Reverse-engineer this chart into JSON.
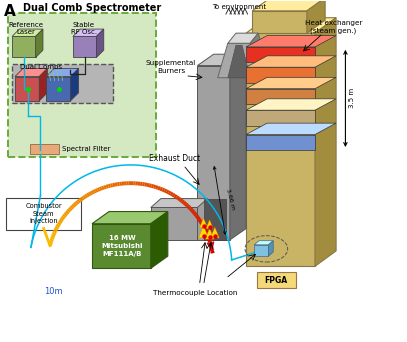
{
  "bg_color": "#ffffff",
  "green_box_color": "#d4e8c2",
  "green_box_edge": "#6aaa3a",
  "colors": {
    "red_shelf": "#e83020",
    "orange_shelf1": "#e87030",
    "orange_shelf2": "#d08040",
    "tan_shelf": "#c0a878",
    "blue_shelf": "#7090d0",
    "tan_wall": "#c8b464",
    "gray_duct_light": "#a0a0a0",
    "gray_duct_dark": "#707070",
    "green_turbine": "#5a8a30",
    "cyan_line": "#00b8e8",
    "yellow_fire": "#ffdd00",
    "red_cube": "#c85050",
    "blue_cube": "#4868b0",
    "green_cube": "#90b060",
    "purple_cube": "#9880b8",
    "salmon_filter": "#e8a878",
    "chimney_gray": "#a8a8a8",
    "chimney_dark": "#787878"
  },
  "labels": {
    "panel": "A",
    "title": "Dual Comb Spectrometer",
    "ref_laser": "Reference\nLaser",
    "stable_rf": "Stable\nRF Osc.",
    "dual_combs": "Dual Combs",
    "spectral_filter": "Spectral Filter",
    "combustor": "Combustor\nSteam\nInjection",
    "exhaust_duct": "Exhaust Duct",
    "turbine": "16 MW\nMitsubishi\nMF111A/B",
    "supplemental": "Supplemental\nBurners",
    "thermocouple": "Thermocouple Location",
    "to_env": "To environment",
    "heat_exchanger": "Heat exchanger\n(steam gen.)",
    "fpga": "FPGA",
    "dist_35": "3.5 m",
    "dist_366": "3.66 m",
    "dist_10m": "10m"
  }
}
